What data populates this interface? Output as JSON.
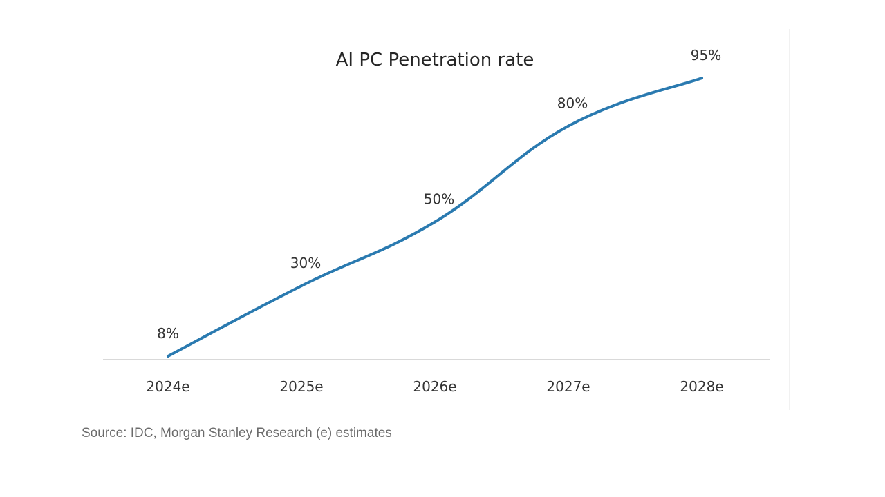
{
  "chart_data": {
    "type": "line",
    "title": "AI PC Penetration rate",
    "categories": [
      "2024e",
      "2025e",
      "2026e",
      "2027e",
      "2028e"
    ],
    "series": [
      {
        "values": [
          8,
          30,
          50,
          80,
          95
        ],
        "data_labels": [
          "8%",
          "30%",
          "50%",
          "80%",
          "95%"
        ],
        "color": "#2A7AB0"
      }
    ],
    "ylim": [
      0,
      100
    ],
    "smooth": true,
    "grid": false,
    "legend": "none",
    "axis_color": "#D9D9D9"
  },
  "source_note": "Source: IDC, Morgan Stanley Research (e) estimates"
}
